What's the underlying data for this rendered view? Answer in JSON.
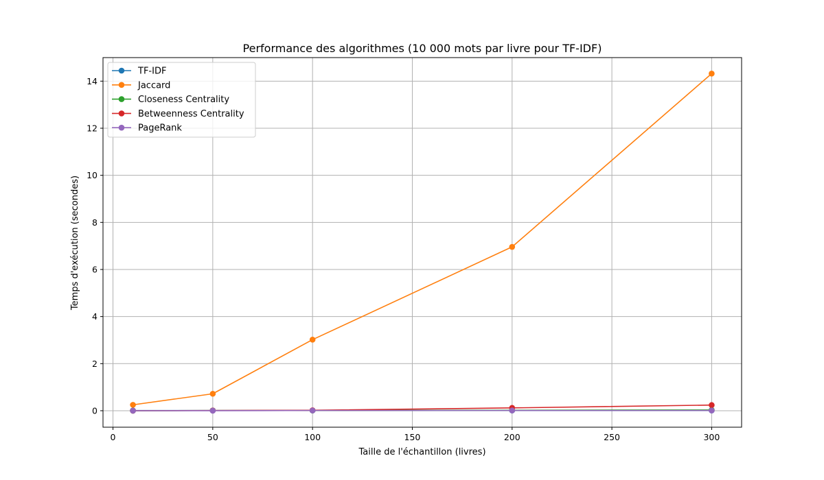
{
  "chart_data": {
    "type": "line",
    "title": "Performance des algorithmes (10 000 mots par livre pour TF-IDF)",
    "xlabel": "Taille de l'échantillon (livres)",
    "ylabel": "Temps d'exécution (secondes)",
    "x": [
      10,
      50,
      100,
      200,
      300
    ],
    "xlim": [
      -5,
      315
    ],
    "ylim": [
      -0.7,
      15.0
    ],
    "xticks": [
      0,
      50,
      100,
      150,
      200,
      250,
      300
    ],
    "yticks": [
      0,
      2,
      4,
      6,
      8,
      10,
      12,
      14
    ],
    "grid": true,
    "legend_position": "top-left",
    "series": [
      {
        "name": "TF-IDF",
        "color": "#1f77b4",
        "values": [
          0.01,
          0.01,
          0.01,
          0.01,
          0.01
        ]
      },
      {
        "name": "Jaccard",
        "color": "#ff7f0e",
        "values": [
          0.25,
          0.72,
          3.02,
          6.96,
          14.32
        ]
      },
      {
        "name": "Closeness Centrality",
        "color": "#2ca02c",
        "values": [
          0.0,
          0.01,
          0.01,
          0.02,
          0.03
        ]
      },
      {
        "name": "Betweenness Centrality",
        "color": "#d62728",
        "values": [
          0.0,
          0.01,
          0.02,
          0.12,
          0.24
        ]
      },
      {
        "name": "PageRank",
        "color": "#9467bd",
        "values": [
          0.0,
          0.0,
          0.01,
          0.01,
          0.01
        ]
      }
    ]
  }
}
